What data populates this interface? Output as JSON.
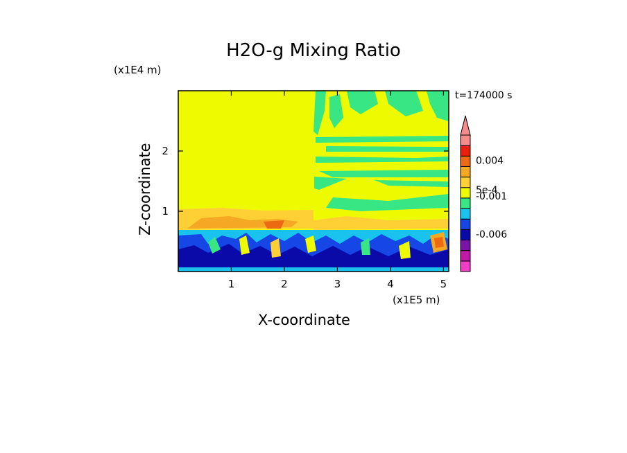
{
  "chart_data": {
    "type": "heatmap",
    "title": "H2O-g Mixing Ratio",
    "xlabel": "X-coordinate",
    "ylabel": "Z-coordinate",
    "x_unit": "(x1E5 m)",
    "z_unit": "(x1E4 m)",
    "time_label": "t=174000 s",
    "xlim": [
      0,
      5.1
    ],
    "ylim": [
      0,
      3.0
    ],
    "x_ticks": [
      1,
      2,
      3,
      4,
      5
    ],
    "y_ticks": [
      1,
      2
    ],
    "colorbar": {
      "extend": "max",
      "colors": [
        "#f23dc6",
        "#c21aa8",
        "#7a14a6",
        "#0a0aa8",
        "#1646e6",
        "#19c3ee",
        "#38e683",
        "#eefb00",
        "#ffd036",
        "#f5a823",
        "#eb6a12",
        "#e8200d",
        "#f38c8c"
      ],
      "labels": [
        "0.004",
        "5e-4",
        "-0.001",
        "-0.006"
      ]
    }
  }
}
